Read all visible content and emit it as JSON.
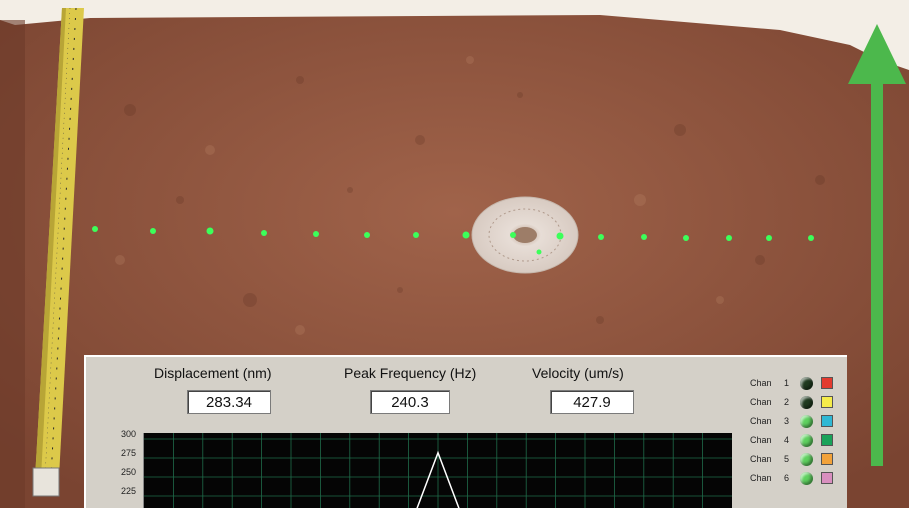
{
  "colors": {
    "soil": "#8f553c",
    "tape": "#dcc94a",
    "arrow": "#4cb84c",
    "marker_dots": "#3cff5a",
    "panel_bg": "#d4d0c8",
    "plot_bg": "#050505",
    "grid": "#1f6b4a",
    "trace": "#ffffff"
  },
  "photo": {
    "icons": [
      "measuring-tape-icon",
      "up-arrow-icon",
      "circular-target-plate-icon"
    ]
  },
  "meters": {
    "displacement": {
      "label": "Displacement (nm)",
      "value": "283.34"
    },
    "peak_frequency": {
      "label": "Peak Frequency (Hz)",
      "value": "240.3"
    },
    "velocity": {
      "label": "Velocity (um/s)",
      "value": "427.9"
    }
  },
  "channels": [
    {
      "label": "Chan",
      "num": "1",
      "led": "#1f3a1f",
      "swatch": "#e33a2e"
    },
    {
      "label": "Chan",
      "num": "2",
      "led": "#1f3a1f",
      "swatch": "#f5ec4a"
    },
    {
      "label": "Chan",
      "num": "3",
      "led": "#5fd15f",
      "swatch": "#2fb8d4"
    },
    {
      "label": "Chan",
      "num": "4",
      "led": "#5fd15f",
      "swatch": "#1aa35a"
    },
    {
      "label": "Chan",
      "num": "5",
      "led": "#5fd15f",
      "swatch": "#f2a23a"
    },
    {
      "label": "Chan",
      "num": "6",
      "led": "#5fd15f",
      "swatch": "#d98fbf"
    }
  ],
  "chart_data": {
    "type": "line",
    "y_ticks": [
      "300",
      "275",
      "250",
      "225"
    ],
    "ylim": [
      200,
      300
    ],
    "grid": true,
    "series": [
      {
        "x": [
          0,
          0.46,
          0.5,
          0.54,
          1
        ],
        "values": [
          200,
          200,
          282,
          200,
          200
        ]
      }
    ]
  }
}
